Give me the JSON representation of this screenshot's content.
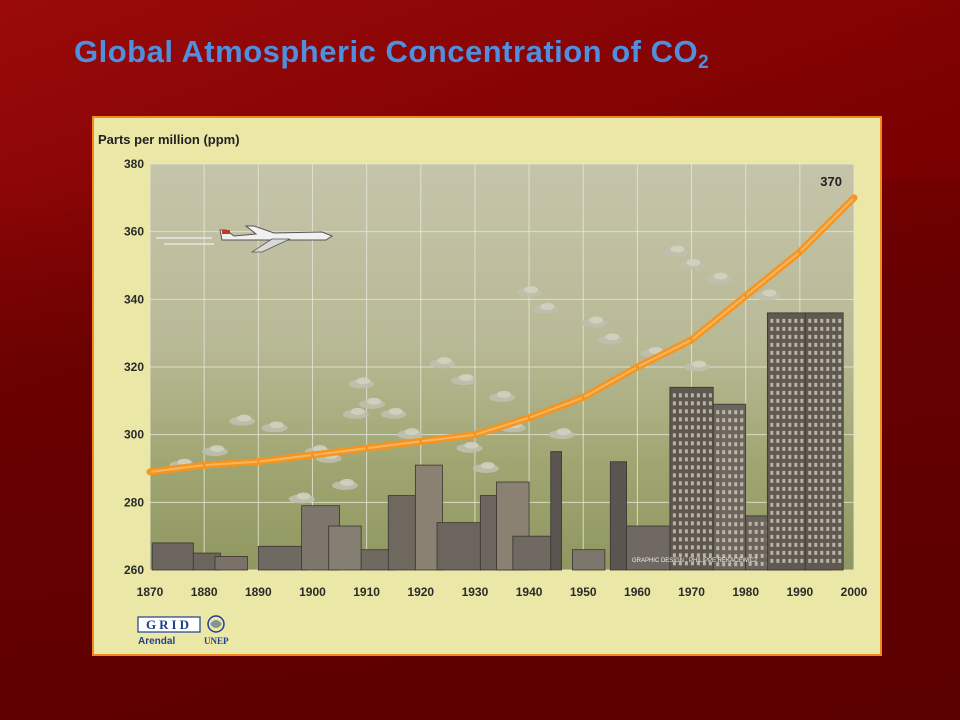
{
  "title": {
    "main": "Global Atmospheric Concentration of CO",
    "subscript": "2"
  },
  "chart_data": {
    "type": "line",
    "title": "",
    "ylabel": "Parts per million (ppm)",
    "xlabel": "",
    "x": [
      1870,
      1880,
      1890,
      1900,
      1910,
      1920,
      1930,
      1940,
      1950,
      1960,
      1970,
      1980,
      1990,
      2000
    ],
    "series": [
      {
        "values": [
          289,
          291,
          292,
          294,
          296,
          298,
          300,
          305,
          311,
          320,
          328,
          341,
          354,
          370
        ]
      }
    ],
    "xlim": [
      1870,
      2000
    ],
    "ylim": [
      260,
      380
    ],
    "yticks": [
      260,
      280,
      300,
      320,
      340,
      360,
      380
    ],
    "xticks": [
      1870,
      1880,
      1890,
      1900,
      1910,
      1920,
      1930,
      1940,
      1950,
      1960,
      1970,
      1980,
      1990,
      2000
    ],
    "grid": true,
    "annotations": [
      {
        "x": 2000,
        "y": 370,
        "text": "370"
      }
    ],
    "credit": "GRAPHIC DESIGN : PHILIPPE REKACEWICZ",
    "line_color": "#f7941d"
  },
  "logos": {
    "grid": "GRID",
    "arendal": "Arendal",
    "unep": "UNEP"
  }
}
